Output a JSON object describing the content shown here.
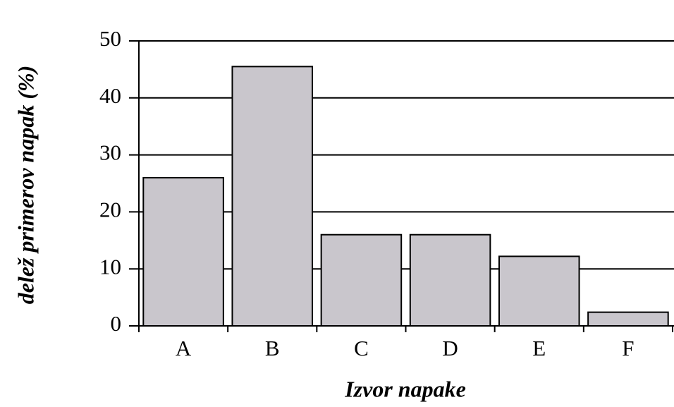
{
  "chart_data": {
    "type": "bar",
    "xlabel": "Izvor napake",
    "ylabel": "delež primerov napak (%)",
    "categories": [
      "A",
      "B",
      "C",
      "D",
      "E",
      "F"
    ],
    "values": [
      26,
      45.5,
      16,
      16,
      12.2,
      2.4
    ],
    "color": "#c9c6cc",
    "ylim": [
      0,
      50
    ],
    "yticks": [
      0,
      10,
      20,
      30,
      40,
      50
    ],
    "grid": true
  }
}
